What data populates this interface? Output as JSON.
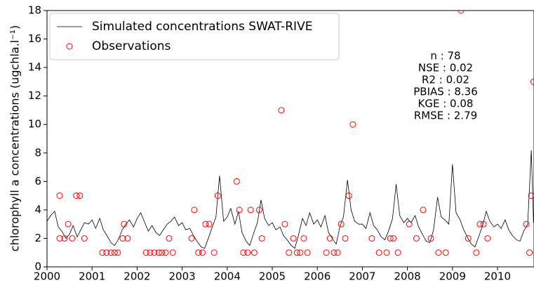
{
  "chart_data": {
    "type": "line",
    "ylabel": "chlorophyll a concentrations (ugchla.l⁻¹)",
    "xlim": [
      2000,
      2010.81
    ],
    "xticks": [
      2000,
      2001,
      2002,
      2003,
      2004,
      2005,
      2006,
      2007,
      2008,
      2009,
      2010
    ],
    "ylim": [
      0,
      18
    ],
    "yticks": [
      0,
      2,
      4,
      6,
      8,
      10,
      12,
      14,
      16,
      18
    ],
    "legend": "upper left",
    "annotations": [
      "n : 78",
      "NSE : 0.02",
      "R2 : 0.02",
      "PBIAS : 8.36",
      "KGE : 0.08",
      "RMSE : 2.79"
    ],
    "series": [
      {
        "name": "Simulated concentrations SWAT-RIVE",
        "type": "line",
        "color": "#000000",
        "x": [
          2000.0,
          2000.08,
          2000.17,
          2000.25,
          2000.33,
          2000.42,
          2000.5,
          2000.58,
          2000.67,
          2000.75,
          2000.83,
          2000.92,
          2001.0,
          2001.08,
          2001.17,
          2001.25,
          2001.33,
          2001.42,
          2001.5,
          2001.58,
          2001.67,
          2001.75,
          2001.83,
          2001.92,
          2002.0,
          2002.08,
          2002.17,
          2002.25,
          2002.33,
          2002.42,
          2002.5,
          2002.58,
          2002.67,
          2002.75,
          2002.83,
          2002.92,
          2003.0,
          2003.08,
          2003.17,
          2003.25,
          2003.33,
          2003.42,
          2003.5,
          2003.58,
          2003.67,
          2003.75,
          2003.83,
          2003.92,
          2004.0,
          2004.08,
          2004.17,
          2004.25,
          2004.33,
          2004.42,
          2004.5,
          2004.58,
          2004.67,
          2004.75,
          2004.83,
          2004.92,
          2005.0,
          2005.08,
          2005.17,
          2005.25,
          2005.33,
          2005.42,
          2005.5,
          2005.58,
          2005.67,
          2005.75,
          2005.83,
          2005.92,
          2006.0,
          2006.08,
          2006.17,
          2006.25,
          2006.33,
          2006.42,
          2006.5,
          2006.58,
          2006.67,
          2006.75,
          2006.83,
          2006.92,
          2007.0,
          2007.08,
          2007.17,
          2007.25,
          2007.33,
          2007.42,
          2007.5,
          2007.58,
          2007.67,
          2007.75,
          2007.83,
          2007.92,
          2008.0,
          2008.08,
          2008.17,
          2008.25,
          2008.33,
          2008.42,
          2008.5,
          2008.58,
          2008.67,
          2008.75,
          2008.83,
          2008.92,
          2009.0,
          2009.08,
          2009.17,
          2009.25,
          2009.33,
          2009.42,
          2009.5,
          2009.58,
          2009.67,
          2009.75,
          2009.83,
          2009.92,
          2010.0,
          2010.08,
          2010.17,
          2010.25,
          2010.33,
          2010.42,
          2010.5,
          2010.58,
          2010.67,
          2010.75,
          2010.8
        ],
        "values": [
          3.2,
          3.6,
          3.9,
          2.8,
          2.5,
          2.0,
          2.3,
          2.9,
          2.1,
          2.6,
          3.1,
          3.0,
          3.3,
          2.7,
          3.4,
          2.6,
          2.2,
          1.7,
          1.5,
          1.9,
          2.6,
          3.0,
          3.3,
          2.8,
          3.4,
          3.8,
          3.1,
          2.5,
          2.9,
          2.4,
          2.2,
          2.6,
          3.0,
          3.2,
          3.5,
          2.9,
          3.1,
          2.6,
          2.7,
          2.2,
          1.8,
          1.4,
          1.3,
          2.0,
          2.8,
          3.5,
          6.4,
          3.2,
          3.5,
          4.1,
          3.0,
          3.9,
          2.4,
          1.8,
          1.5,
          2.3,
          3.1,
          4.7,
          3.4,
          2.9,
          3.1,
          2.6,
          2.8,
          2.2,
          1.9,
          1.5,
          1.3,
          2.2,
          3.4,
          2.9,
          3.8,
          3.0,
          3.3,
          2.8,
          3.6,
          2.4,
          2.0,
          1.6,
          2.8,
          3.5,
          6.1,
          4.0,
          3.2,
          3.0,
          3.0,
          2.7,
          3.8,
          2.9,
          2.6,
          2.1,
          1.9,
          2.5,
          3.4,
          5.8,
          3.6,
          3.1,
          3.4,
          3.1,
          3.6,
          2.8,
          2.3,
          1.8,
          1.7,
          2.6,
          4.9,
          3.5,
          3.3,
          3.0,
          7.2,
          3.8,
          3.3,
          2.6,
          2.1,
          1.6,
          1.4,
          2.1,
          2.9,
          3.9,
          3.2,
          2.8,
          3.0,
          2.7,
          3.3,
          2.6,
          2.2,
          1.9,
          1.8,
          2.5,
          3.0,
          8.2,
          3.1
        ]
      },
      {
        "name": "Observations",
        "type": "scatter",
        "color": "#ff0000",
        "x": [
          2000.28,
          2000.28,
          2000.39,
          2000.47,
          2000.56,
          2000.65,
          2000.73,
          2000.83,
          2001.23,
          2001.32,
          2001.42,
          2001.5,
          2001.57,
          2001.68,
          2001.71,
          2001.79,
          2002.2,
          2002.29,
          2002.38,
          2002.48,
          2002.55,
          2002.63,
          2002.71,
          2002.79,
          2003.21,
          2003.27,
          2003.36,
          2003.45,
          2003.52,
          2003.6,
          2003.71,
          2003.79,
          2004.21,
          2004.27,
          2004.36,
          2004.45,
          2004.52,
          2004.6,
          2004.71,
          2004.77,
          2005.2,
          2005.28,
          2005.37,
          2005.47,
          2005.55,
          2005.62,
          2005.7,
          2005.78,
          2006.2,
          2006.28,
          2006.37,
          2006.45,
          2006.53,
          2006.62,
          2006.7,
          2006.79,
          2007.21,
          2007.37,
          2007.54,
          2007.62,
          2007.69,
          2007.79,
          2008.04,
          2008.2,
          2008.35,
          2008.52,
          2008.69,
          2008.85,
          2009.19,
          2009.35,
          2009.53,
          2009.61,
          2009.69,
          2009.78,
          2010.64,
          2010.71,
          2010.75,
          2010.8
        ],
        "values": [
          5,
          2,
          2,
          3,
          2,
          5,
          5,
          2,
          1,
          1,
          1,
          1,
          1,
          2,
          3,
          2,
          1,
          1,
          1,
          1,
          1,
          1,
          2,
          1,
          2,
          4,
          1,
          1,
          3,
          3,
          1,
          5,
          6,
          4,
          1,
          1,
          4,
          1,
          4,
          2,
          11,
          3,
          1,
          2,
          1,
          1,
          2,
          1,
          1,
          2,
          1,
          1,
          3,
          2,
          5,
          10,
          2,
          1,
          1,
          2,
          2,
          1,
          3,
          2,
          4,
          2,
          1,
          1,
          18,
          2,
          1,
          3,
          3,
          2,
          3,
          1,
          5,
          13
        ]
      }
    ]
  }
}
